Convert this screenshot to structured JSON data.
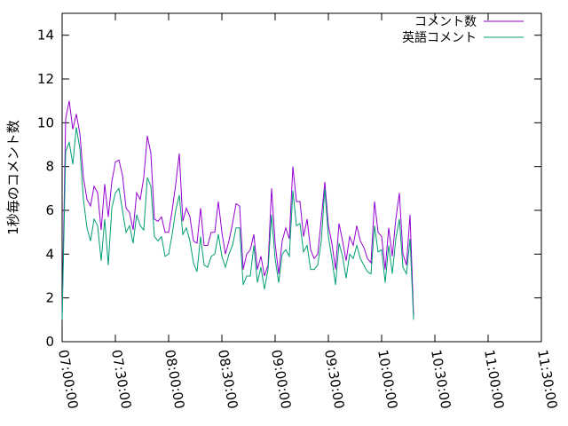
{
  "chart_data": {
    "type": "line",
    "title": "",
    "xlabel": "",
    "ylabel": "1秒毎のコメント数",
    "xlim": [
      "07:00:00",
      "11:30:00"
    ],
    "ylim": [
      0,
      15
    ],
    "x_ticks": [
      "07:00:00",
      "07:30:00",
      "08:00:00",
      "08:30:00",
      "09:00:00",
      "09:30:00",
      "10:00:00",
      "10:30:00",
      "11:00:00",
      "11:30:00"
    ],
    "y_ticks": [
      "0",
      "2",
      "4",
      "6",
      "8",
      "10",
      "12",
      "14"
    ],
    "grid": false,
    "legend_position": "top-right",
    "sample_interval": "2 minutes",
    "x_start": "07:00:00",
    "series": [
      {
        "name": "コメント数",
        "color": "#9400d3",
        "values": [
          1.2,
          10.2,
          11.0,
          9.7,
          10.4,
          9.5,
          7.5,
          6.5,
          6.2,
          7.1,
          6.8,
          5.1,
          7.2,
          5.7,
          7.3,
          8.2,
          8.3,
          7.6,
          6.1,
          5.9,
          5.1,
          6.8,
          6.5,
          7.5,
          9.4,
          8.6,
          5.6,
          5.5,
          5.7,
          5.0,
          5.0,
          6.0,
          7.2,
          8.6,
          5.5,
          6.1,
          5.7,
          4.6,
          4.5,
          6.1,
          4.4,
          4.4,
          5.0,
          5.0,
          6.4,
          5.0,
          4.0,
          4.6,
          5.4,
          6.3,
          6.2,
          3.3,
          4.0,
          4.2,
          4.9,
          3.3,
          3.9,
          3.0,
          3.5,
          7.0,
          4.5,
          3.1,
          4.6,
          5.2,
          4.7,
          8.0,
          6.4,
          6.4,
          4.8,
          5.6,
          4.2,
          3.8,
          4.0,
          5.6,
          7.3,
          5.3,
          4.5,
          3.3,
          5.4,
          4.6,
          3.7,
          4.8,
          4.4,
          5.3,
          4.6,
          4.3,
          3.8,
          3.6,
          6.4,
          5.0,
          4.8,
          3.3,
          5.2,
          3.9,
          5.6,
          6.8,
          4.0,
          3.5,
          5.8,
          1.2
        ]
      },
      {
        "name": "英語コメント",
        "color": "#009e73",
        "values": [
          1.0,
          8.7,
          9.1,
          8.1,
          9.8,
          8.8,
          6.5,
          5.2,
          4.6,
          5.6,
          5.3,
          3.7,
          5.6,
          3.5,
          6.1,
          6.8,
          7.0,
          6.0,
          5.0,
          5.3,
          4.5,
          5.8,
          5.3,
          5.1,
          7.5,
          7.1,
          4.8,
          4.6,
          4.8,
          3.9,
          4.0,
          4.9,
          6.0,
          6.7,
          4.9,
          5.2,
          4.6,
          3.6,
          3.2,
          4.8,
          3.5,
          3.4,
          3.9,
          4.0,
          4.9,
          3.9,
          3.4,
          4.0,
          4.4,
          5.2,
          5.2,
          2.6,
          3.0,
          3.0,
          4.4,
          2.7,
          3.4,
          2.4,
          3.3,
          5.8,
          3.8,
          2.7,
          4.0,
          4.2,
          3.9,
          6.9,
          5.3,
          5.4,
          4.1,
          4.4,
          3.3,
          3.3,
          3.5,
          4.6,
          7.0,
          4.8,
          3.8,
          2.6,
          4.5,
          3.9,
          2.9,
          4.0,
          3.8,
          4.4,
          3.8,
          3.5,
          3.2,
          3.1,
          5.3,
          4.1,
          4.2,
          2.7,
          4.4,
          3.1,
          4.7,
          5.6,
          3.4,
          3.1,
          4.7,
          1.0
        ]
      }
    ]
  }
}
